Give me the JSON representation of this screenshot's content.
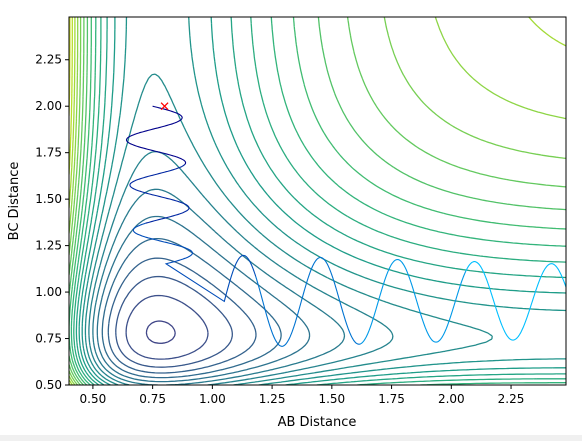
{
  "chart_data": {
    "type": "contour",
    "title": "",
    "xlabel": "AB Distance",
    "ylabel": "BC Distance",
    "xlim": [
      0.4,
      2.48
    ],
    "ylim": [
      0.5,
      2.48
    ],
    "x_ticks": [
      "0.50",
      "0.75",
      "1.00",
      "1.25",
      "1.50",
      "1.75",
      "2.00",
      "2.25"
    ],
    "y_ticks": [
      "0.50",
      "0.75",
      "1.00",
      "1.25",
      "1.50",
      "1.75",
      "2.00",
      "2.25"
    ],
    "grid": false,
    "colormap": "viridis",
    "start_marker": {
      "x": 0.8,
      "y": 2.0,
      "symbol": "x",
      "color": "#ff0000"
    },
    "trajectory_color_start": "#00008b",
    "trajectory_color_end": "#00bfff"
  }
}
